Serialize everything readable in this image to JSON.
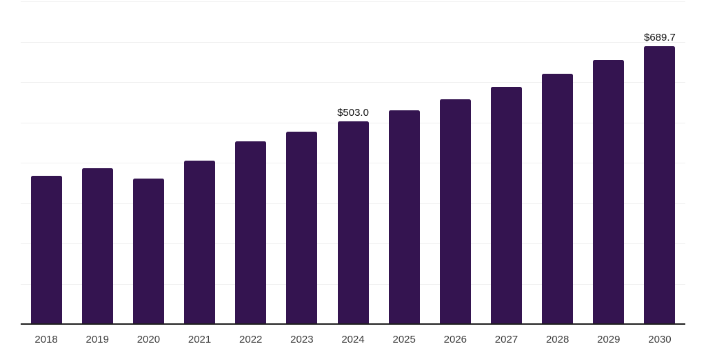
{
  "chart_data": {
    "type": "bar",
    "title": "",
    "xlabel": "",
    "ylabel": "",
    "categories": [
      "2018",
      "2019",
      "2020",
      "2021",
      "2022",
      "2023",
      "2024",
      "2025",
      "2026",
      "2027",
      "2028",
      "2029",
      "2030"
    ],
    "values": [
      367,
      386,
      361,
      405,
      453,
      477,
      503.0,
      530,
      558,
      588,
      620,
      654,
      689.7
    ],
    "value_labels": [
      "",
      "",
      "",
      "",
      "",
      "",
      "$503.0",
      "",
      "",
      "",
      "",
      "",
      "$689.7"
    ],
    "labeled_points": [
      {
        "category": "2024",
        "label": "$503.0",
        "value": 503.0
      },
      {
        "category": "2030",
        "label": "$689.7",
        "value": 689.7
      }
    ],
    "ylim": [
      0,
      800
    ],
    "gridline_step": 100,
    "grid": "horizontal",
    "legend": "none",
    "y_axis_labels_visible": false,
    "x_axis_line_visible": true,
    "bar_color": "#341450",
    "axis_line_color": "#1f1f1f",
    "gridline_color": "#f0f0f0",
    "tick_label_color": "#3b3b3b",
    "value_label_color": "#111111"
  }
}
